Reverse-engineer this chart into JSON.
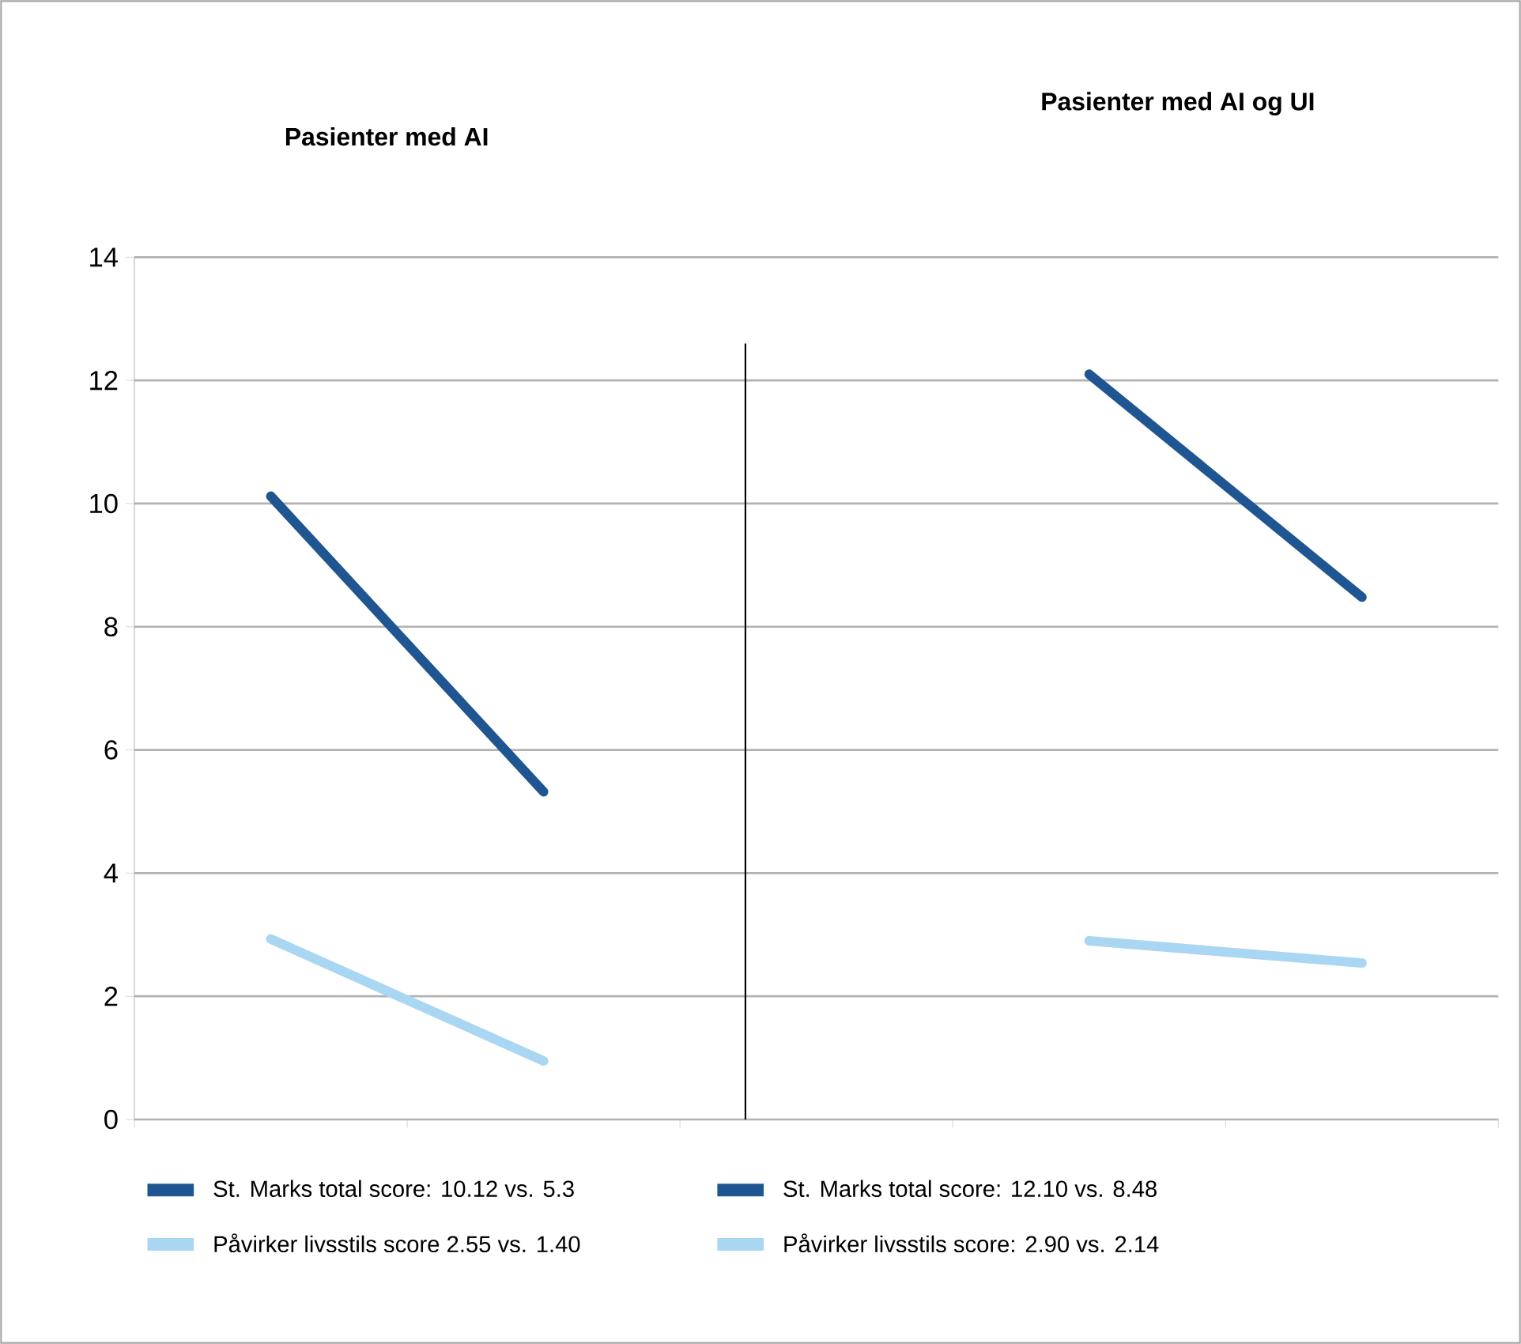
{
  "chart_data": {
    "type": "line",
    "categories": [
      null,
      null,
      null,
      null,
      null
    ],
    "series": [
      {
        "name": "St. Marks total score: 10.12 vs. 5.3",
        "color": "#1f5591",
        "values": [
          10.12,
          5.32,
          null,
          null,
          null
        ]
      },
      {
        "name": "Påvirker livsstils score  2.55 vs. 1.40",
        "color": "#a9d6f2",
        "values": [
          2.93,
          0.95,
          null,
          null,
          null
        ]
      },
      {
        "name": "St. Marks total score: 12.10 vs. 8.48",
        "color": "#1f5591",
        "values": [
          null,
          null,
          null,
          12.1,
          8.48
        ]
      },
      {
        "name": "Påvirker livsstils  score:  2.90 vs. 2.14",
        "color": "#a9d6f2",
        "values": [
          null,
          null,
          null,
          2.9,
          2.54
        ]
      }
    ],
    "annotations": [
      "Pasienter med AI",
      "Pasienter med AI og UI"
    ],
    "ylim": [
      0,
      14
    ],
    "yticks": [
      0,
      2,
      4,
      6,
      8,
      10,
      12,
      14
    ],
    "grid": "y",
    "legend": "bottom",
    "marker": "none",
    "line_style": "solid"
  }
}
